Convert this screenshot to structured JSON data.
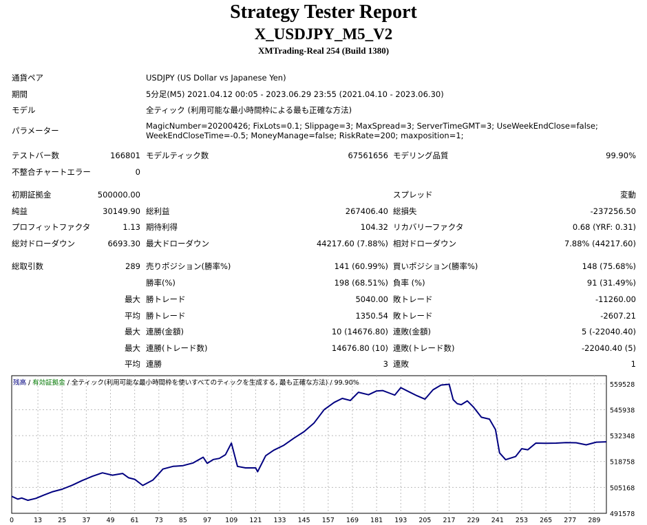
{
  "header": {
    "title": "Strategy Tester Report",
    "ea_name": "X_USDJPY_M5_V2",
    "server_build": "XMTrading-Real 254 (Build 1380)"
  },
  "settings": {
    "symbol_label": "通貨ペア",
    "symbol_value": "USDJPY (US Dollar vs Japanese Yen)",
    "period_label": "期間",
    "period_value": "5分足(M5) 2021.04.12 00:05 - 2023.06.29 23:55 (2021.04.10 - 2023.06.30)",
    "model_label": "モデル",
    "model_value": "全ティック (利用可能な最小時間枠による最も正確な方法)",
    "params_label": "パラメーター",
    "params_line1": "MagicNumber=20200426; FixLots=0.1; Slippage=3; MaxSpread=3; ServerTimeGMT=3; UseWeekEndClose=false;",
    "params_line2": "WeekEndCloseTime=-0.5; MoneyManage=false; RiskRate=200; maxposition=1;"
  },
  "bars": {
    "bars_label": "テストバー数",
    "bars_value": "166801",
    "ticks_label": "モデルティック数",
    "ticks_value": "67561656",
    "quality_label": "モデリング品質",
    "quality_value": "99.90%",
    "errors_label": "不整合チャートエラー",
    "errors_value": "0"
  },
  "results": {
    "deposit_label": "初期証拠金",
    "deposit_value": "500000.00",
    "spread_label": "スプレッド",
    "spread_value": "変動",
    "net_label": "純益",
    "net_value": "30149.90",
    "gross_profit_label": "総利益",
    "gross_profit_value": "267406.40",
    "gross_loss_label": "総損失",
    "gross_loss_value": "-237256.50",
    "pf_label": "プロフィットファクタ",
    "pf_value": "1.13",
    "expected_label": "期待利得",
    "expected_value": "104.32",
    "recovery_label": "リカバリーファクタ",
    "recovery_value": "0.68 (YRF: 0.31)",
    "abs_dd_label": "総対ドローダウン",
    "abs_dd_value": "6693.30",
    "max_dd_label": "最大ドローダウン",
    "max_dd_value": "44217.60 (7.88%)",
    "rel_dd_label": "相対ドローダウン",
    "rel_dd_value": "7.88% (44217.60)"
  },
  "trades": {
    "total_label": "総取引数",
    "total_value": "289",
    "short_label": "売りポジション(勝率%)",
    "short_value": "141 (60.99%)",
    "long_label": "買いポジション(勝率%)",
    "long_value": "148 (75.68%)",
    "win_rate_label": "勝率(%)",
    "win_rate_value": "198 (68.51%)",
    "loss_rate_label": "負率 (%)",
    "loss_rate_value": "91 (31.49%)",
    "max_word": "最大",
    "avg_word": "平均",
    "max_win_label": "勝トレード",
    "max_win_value": "5040.00",
    "max_loss_label": "敗トレード",
    "max_loss_value": "-11260.00",
    "avg_win_label": "勝トレード",
    "avg_win_value": "1350.54",
    "avg_loss_label": "敗トレード",
    "avg_loss_value": "-2607.21",
    "consec_wins_amt_label": "連勝(金額)",
    "consec_wins_amt_value": "10 (14676.80)",
    "consec_losses_amt_label": "連敗(金額)",
    "consec_losses_amt_value": "5 (-22040.40)",
    "consec_profit_label": "連勝(トレード数)",
    "consec_profit_value": "14676.80 (10)",
    "consec_loss_label": "連敗(トレード数)",
    "consec_loss_value": "-22040.40 (5)",
    "avg_consec_wins_label": "連勝",
    "avg_consec_wins_value": "3",
    "avg_consec_losses_label": "連敗",
    "avg_consec_losses_value": "1"
  },
  "chart_data": {
    "type": "line",
    "legend_balance": "残高",
    "legend_sep1": " / ",
    "legend_equity": "有効証拠金",
    "legend_sep2": " / ",
    "legend_model": "全ティック(利用可能な最小時間枠を使いすべてのティックを生成する, 最も正確な方法)",
    "legend_sep3": " / ",
    "legend_quality": "99.90%",
    "line_color": "#000080",
    "grid": true,
    "xlim": [
      0,
      295
    ],
    "ylim": [
      491578,
      563800
    ],
    "y_ticks": [
      491578,
      505168,
      518758,
      532348,
      545938,
      559528
    ],
    "x_ticks": [
      0,
      13,
      25,
      37,
      49,
      61,
      73,
      85,
      97,
      109,
      121,
      133,
      145,
      157,
      169,
      181,
      193,
      205,
      217,
      229,
      241,
      253,
      265,
      277,
      289
    ],
    "x": [
      0,
      3,
      5,
      8,
      12,
      16,
      20,
      25,
      30,
      35,
      40,
      45,
      50,
      55,
      58,
      61,
      65,
      70,
      73,
      75,
      80,
      85,
      90,
      95,
      97,
      100,
      103,
      106,
      109,
      112,
      116,
      121,
      122,
      126,
      130,
      135,
      140,
      145,
      150,
      155,
      160,
      164,
      168,
      172,
      177,
      181,
      184,
      188,
      190,
      193,
      197,
      201,
      205,
      209,
      213,
      217,
      219,
      221,
      223,
      226,
      229,
      233,
      237,
      240,
      242,
      245,
      250,
      253,
      256,
      260,
      265,
      270,
      275,
      280,
      285,
      290,
      295
    ],
    "y": [
      500500,
      499000,
      499600,
      498400,
      499400,
      501200,
      502800,
      504200,
      506300,
      508800,
      511000,
      512800,
      511600,
      512500,
      510200,
      509400,
      506200,
      509000,
      512400,
      514800,
      516200,
      516600,
      518000,
      521000,
      517800,
      519800,
      520400,
      522300,
      528400,
      516200,
      515400,
      515400,
      513400,
      521800,
      524700,
      527300,
      531000,
      534400,
      539000,
      546000,
      549800,
      551900,
      550800,
      555100,
      553800,
      555800,
      556000,
      554400,
      553600,
      557500,
      555400,
      553300,
      551500,
      556400,
      558900,
      559300,
      551200,
      549100,
      548600,
      550600,
      547400,
      542000,
      541000,
      535500,
      523300,
      519700,
      521400,
      525500,
      524900,
      528400,
      528300,
      528400,
      528700,
      528600,
      527500,
      528900,
      529100
    ]
  }
}
